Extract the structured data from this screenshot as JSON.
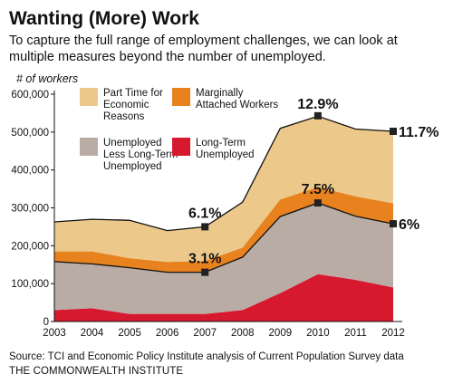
{
  "title": "Wanting (More) Work",
  "subtitle": "To capture the full range of employment challenges, we can look at multiple measures beyond the number of unemployed.",
  "y_unit_label": "# of workers",
  "source": "Source: TCI and Economic Policy Institute analysis of Current Population Survey data",
  "organization": "THE COMMONWEALTH INSTITUTE",
  "chart_data": {
    "type": "area",
    "stacked": true,
    "categories": [
      "2003",
      "2004",
      "2005",
      "2006",
      "2007",
      "2008",
      "2009",
      "2010",
      "2011",
      "2012"
    ],
    "ylim": [
      0,
      600000
    ],
    "yticks": [
      0,
      100000,
      200000,
      300000,
      400000,
      500000,
      600000
    ],
    "ytick_labels": [
      "0",
      "100,000",
      "200,000",
      "300,000",
      "400,000",
      "500,000",
      "600,000"
    ],
    "ylabel": "# of workers",
    "grid": false,
    "legend_position": "top-left",
    "series": [
      {
        "name": "Long-Term Unemployed",
        "color": "#d7192f",
        "values": [
          30000,
          35000,
          20000,
          20000,
          20000,
          30000,
          75000,
          125000,
          110000,
          90000
        ]
      },
      {
        "name": "Unemployed Less Long-Term Unemployed",
        "color": "#b9aca4",
        "values": [
          128000,
          117000,
          122000,
          110000,
          110000,
          140000,
          202000,
          188000,
          168000,
          168000
        ]
      },
      {
        "name": "Marginally Attached Workers",
        "color": "#e8821e",
        "values": [
          27000,
          33000,
          25000,
          27000,
          30000,
          25000,
          45000,
          42000,
          52000,
          54000
        ]
      },
      {
        "name": "Part Time for Economic Reasons",
        "color": "#ecc98a",
        "values": [
          78000,
          85000,
          100000,
          83000,
          90000,
          120000,
          188000,
          187000,
          178000,
          190000
        ]
      }
    ],
    "legend": [
      {
        "name": "Part Time for Economic Reasons",
        "lines": [
          "Part Time for",
          "Economic",
          "Reasons"
        ],
        "color": "#ecc98a"
      },
      {
        "name": "Marginally Attached Workers",
        "lines": [
          "Marginally",
          "Attached Workers"
        ],
        "color": "#e8821e"
      },
      {
        "name": "Unemployed Less Long-Term Unemployed",
        "lines": [
          "Unemployed",
          "Less Long-Term",
          "Unemployed"
        ],
        "color": "#b9aca4"
      },
      {
        "name": "Long-Term Unemployed",
        "lines": [
          "Long-Term",
          "Unemployed"
        ],
        "color": "#d7192f"
      }
    ],
    "annotations": [
      {
        "label": "6.1%",
        "category": "2007",
        "value": 250000
      },
      {
        "label": "3.1%",
        "category": "2007",
        "value": 130000
      },
      {
        "label": "12.9%",
        "category": "2010",
        "value": 543000
      },
      {
        "label": "7.5%",
        "category": "2010",
        "value": 313000
      },
      {
        "label": "11.7%",
        "category": "2012",
        "value": 502000
      },
      {
        "label": "6%",
        "category": "2012",
        "value": 258000
      }
    ]
  }
}
